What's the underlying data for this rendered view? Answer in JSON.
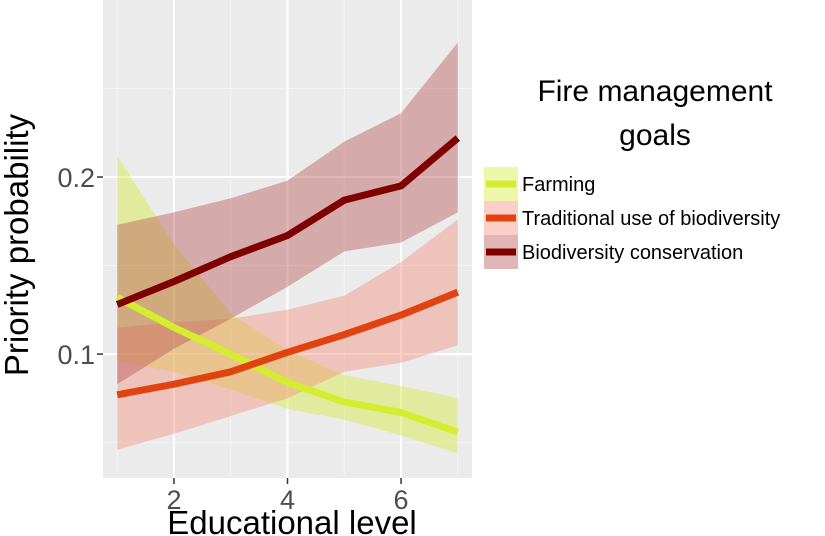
{
  "chart_data": {
    "type": "line",
    "xlabel": "Educational level",
    "ylabel": "Priority probability",
    "xlim": [
      0.75,
      7.25
    ],
    "ylim": [
      0.03,
      0.3
    ],
    "x_ticks": [
      2,
      4,
      6
    ],
    "y_ticks": [
      0.1,
      0.2
    ],
    "y_tick_labels": [
      "0.1",
      "0.2"
    ],
    "grid": true,
    "legend": {
      "title": [
        "Fire management",
        "goals"
      ],
      "position": "right"
    },
    "x": [
      1,
      2,
      3,
      4,
      5,
      6,
      7
    ],
    "series": [
      {
        "name": "Farming",
        "color": "#d4ed31",
        "fill_color": "#d4ed31",
        "values": [
          0.132,
          0.115,
          0.1,
          0.084,
          0.073,
          0.067,
          0.056
        ],
        "lower": [
          0.096,
          0.09,
          0.08,
          0.069,
          0.063,
          0.054,
          0.044
        ],
        "upper": [
          0.212,
          0.162,
          0.123,
          0.102,
          0.088,
          0.082,
          0.075
        ]
      },
      {
        "name": "Traditional use of biodiversity",
        "color": "#e0430f",
        "fill_color": "#f28c7a",
        "values": [
          0.077,
          0.083,
          0.09,
          0.101,
          0.111,
          0.122,
          0.135
        ],
        "lower": [
          0.046,
          0.055,
          0.065,
          0.075,
          0.09,
          0.095,
          0.105
        ],
        "upper": [
          0.115,
          0.118,
          0.12,
          0.125,
          0.133,
          0.152,
          0.176
        ]
      },
      {
        "name": "Biodiversity conservation",
        "color": "#7f0000",
        "fill_color": "#b65050",
        "values": [
          0.128,
          0.141,
          0.155,
          0.167,
          0.187,
          0.195,
          0.222
        ],
        "lower": [
          0.083,
          0.103,
          0.12,
          0.138,
          0.158,
          0.163,
          0.18
        ],
        "upper": [
          0.173,
          0.18,
          0.188,
          0.198,
          0.22,
          0.236,
          0.276
        ]
      }
    ]
  }
}
